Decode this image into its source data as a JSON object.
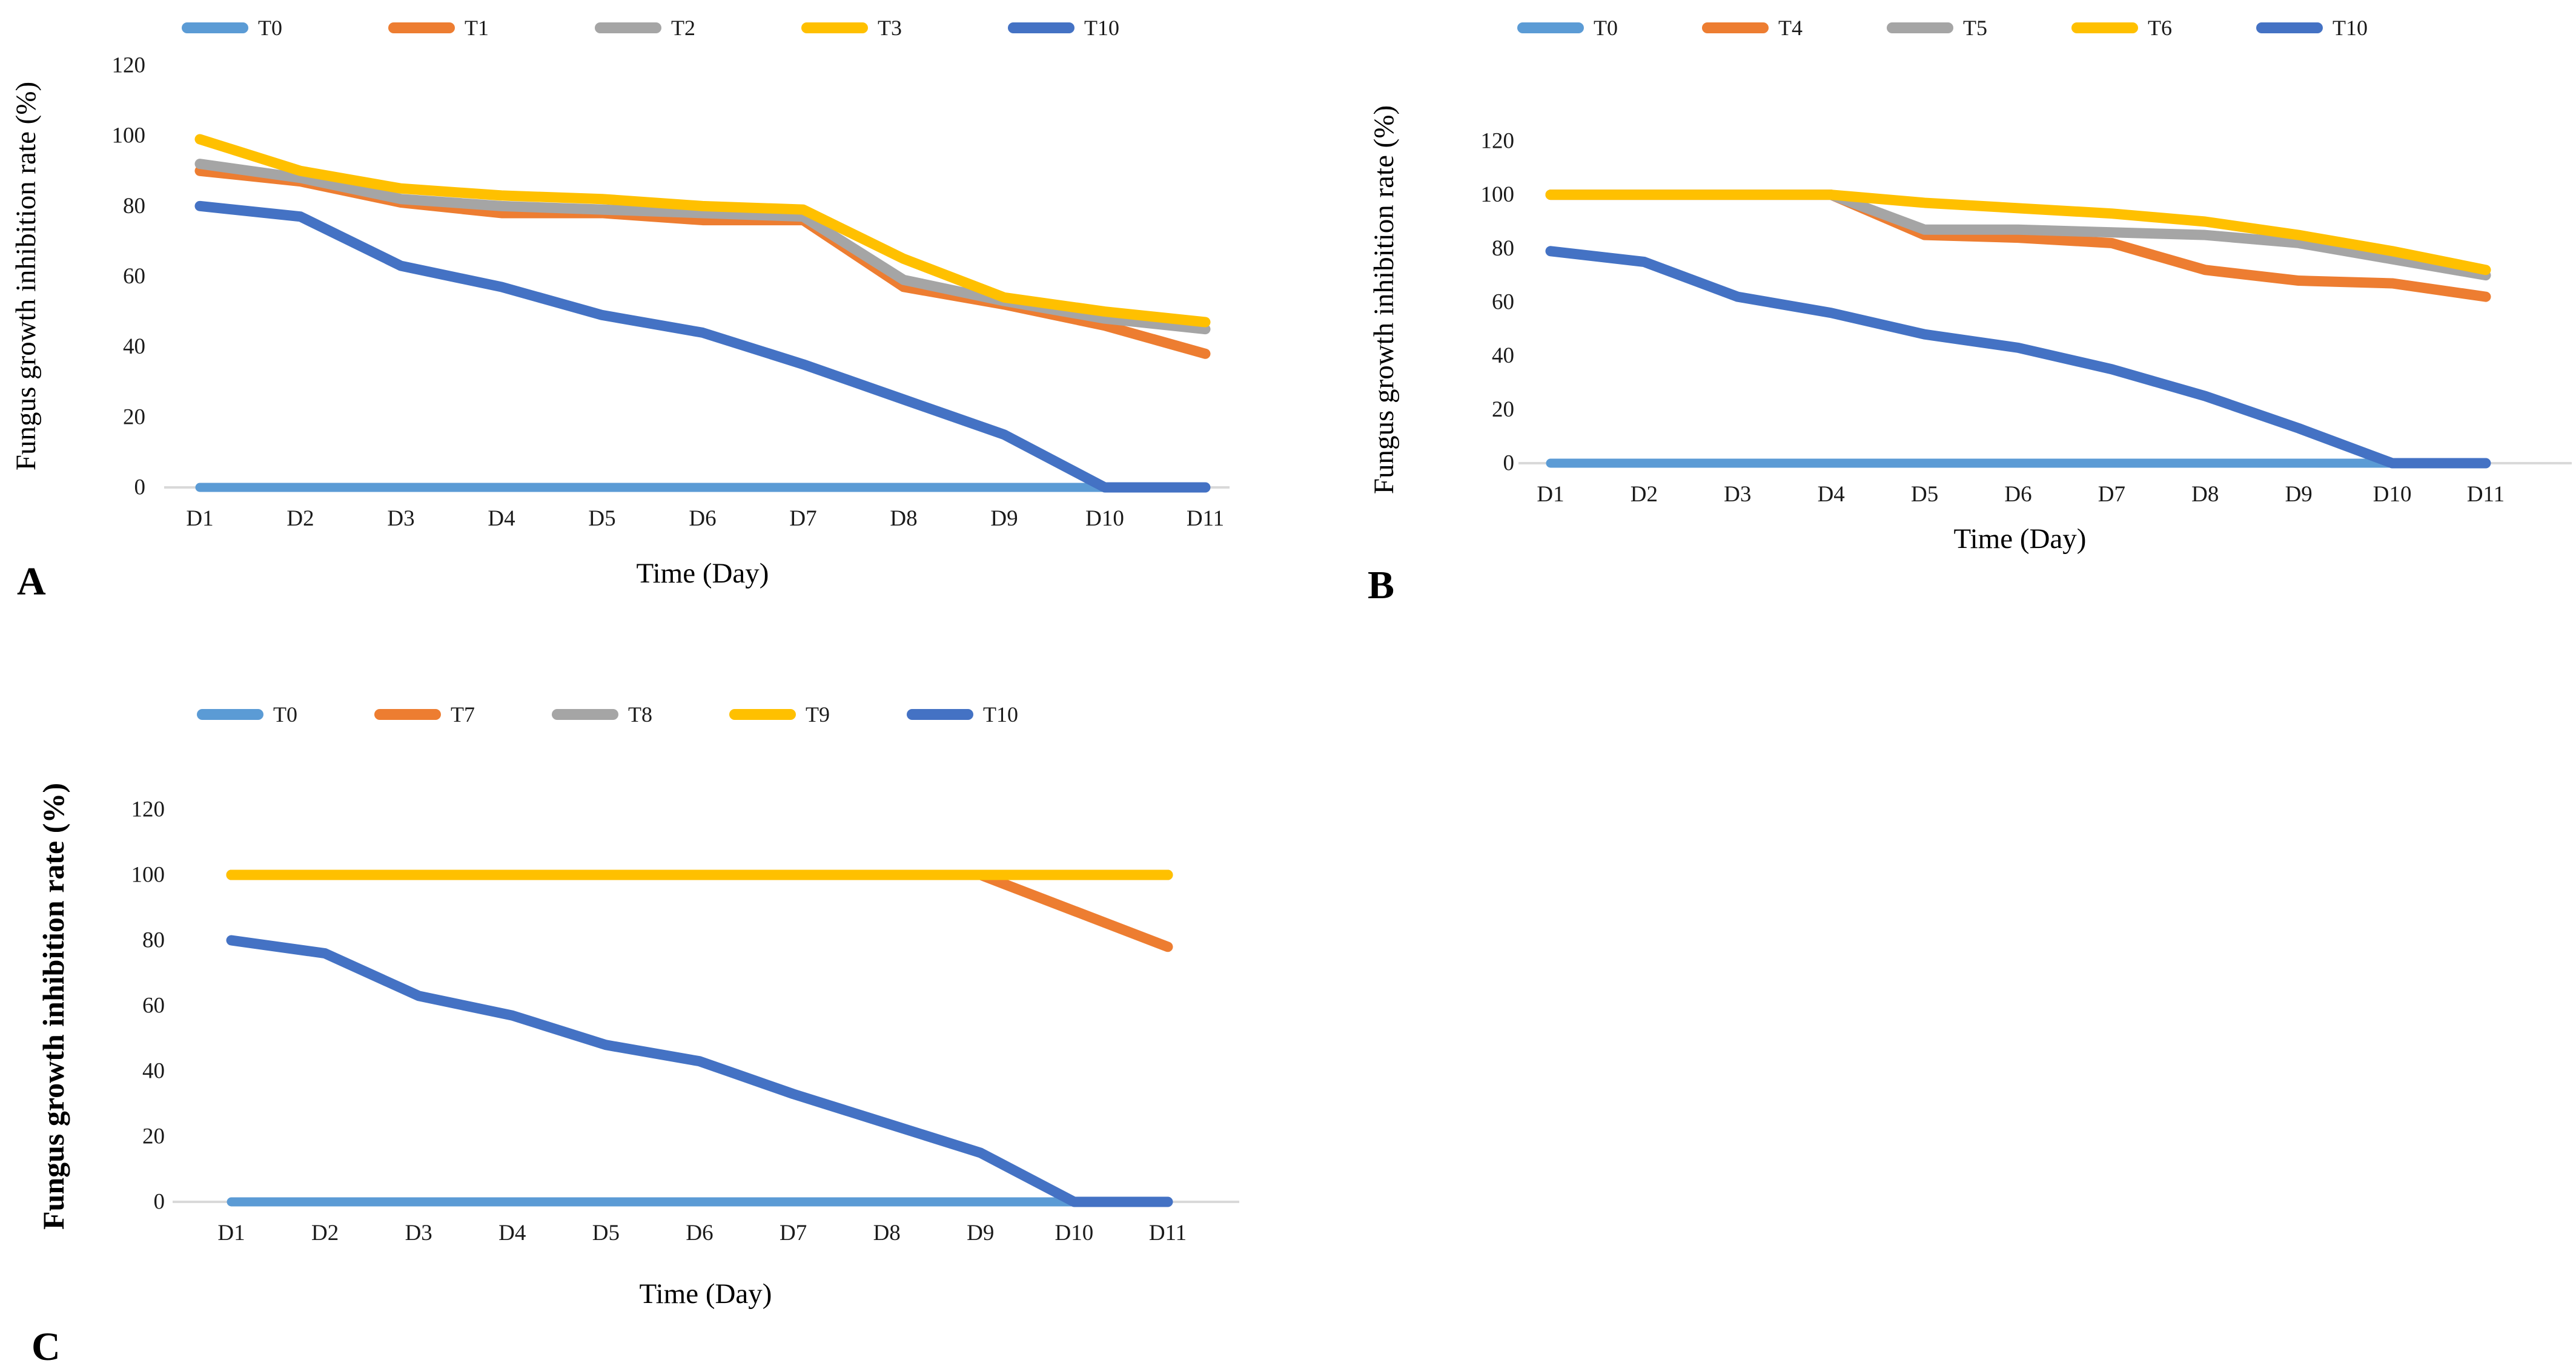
{
  "figure": {
    "background_color": "#ffffff",
    "text_color": "#1a1a1a",
    "baseline_color": "#d9d9d9",
    "legend_position": "top",
    "grid": false
  },
  "chart_data": [
    {
      "type": "line",
      "panel_label": "A",
      "categories": [
        "D1",
        "D2",
        "D3",
        "D4",
        "D5",
        "D6",
        "D7",
        "D8",
        "D9",
        "D10",
        "D11"
      ],
      "xlabel": "Time (Day)",
      "ylabel": "Fungus growth inhibition  rate (%)",
      "ylabel_bold": false,
      "ylim": [
        0,
        120
      ],
      "y_ticks": [
        0,
        20,
        40,
        60,
        80,
        100,
        120
      ],
      "legend_entries": [
        "T0",
        "T1",
        "T2",
        "T3",
        "T10"
      ],
      "series": [
        {
          "name": "T0",
          "color": "#5B9BD5",
          "values": [
            0,
            0,
            0,
            0,
            0,
            0,
            0,
            0,
            0,
            0,
            0
          ]
        },
        {
          "name": "T1",
          "color": "#ED7D31",
          "values": [
            90,
            87,
            81,
            78,
            78,
            76,
            76,
            57,
            52,
            46,
            38
          ]
        },
        {
          "name": "T2",
          "color": "#A5A5A5",
          "values": [
            92,
            88,
            82,
            80,
            79,
            78,
            77,
            59,
            53,
            48,
            45
          ]
        },
        {
          "name": "T3",
          "color": "#FFC000",
          "values": [
            99,
            90,
            85,
            83,
            82,
            80,
            79,
            65,
            54,
            50,
            47
          ]
        },
        {
          "name": "T10",
          "color": "#4472C4",
          "values": [
            80,
            77,
            63,
            57,
            49,
            44,
            35,
            25,
            15,
            0,
            0
          ]
        }
      ]
    },
    {
      "type": "line",
      "panel_label": "B",
      "categories": [
        "D1",
        "D2",
        "D3",
        "D4",
        "D5",
        "D6",
        "D7",
        "D8",
        "D9",
        "D10",
        "D11"
      ],
      "xlabel": "Time (Day)",
      "ylabel": "Fungus growth inhibition  rate (%)",
      "ylabel_bold": false,
      "ylim": [
        0,
        120
      ],
      "y_ticks": [
        0,
        20,
        40,
        60,
        80,
        100,
        120
      ],
      "legend_entries": [
        "T0",
        "T4",
        "T5",
        "T6",
        "T10"
      ],
      "series": [
        {
          "name": "T0",
          "color": "#5B9BD5",
          "values": [
            0,
            0,
            0,
            0,
            0,
            0,
            0,
            0,
            0,
            0,
            0
          ]
        },
        {
          "name": "T4",
          "color": "#ED7D31",
          "values": [
            100,
            100,
            100,
            100,
            85,
            84,
            82,
            72,
            68,
            67,
            62
          ]
        },
        {
          "name": "T5",
          "color": "#A5A5A5",
          "values": [
            100,
            100,
            100,
            100,
            87,
            87,
            86,
            85,
            82,
            76,
            70
          ]
        },
        {
          "name": "T6",
          "color": "#FFC000",
          "values": [
            100,
            100,
            100,
            100,
            97,
            95,
            93,
            90,
            85,
            79,
            72
          ]
        },
        {
          "name": "T10",
          "color": "#4472C4",
          "values": [
            79,
            75,
            62,
            56,
            48,
            43,
            35,
            25,
            13,
            0,
            0
          ]
        }
      ]
    },
    {
      "type": "line",
      "panel_label": "C",
      "categories": [
        "D1",
        "D2",
        "D3",
        "D4",
        "D5",
        "D6",
        "D7",
        "D8",
        "D9",
        "D10",
        "D11"
      ],
      "xlabel": "Time (Day)",
      "ylabel": "Fungus growth inhibition rate (%)",
      "ylabel_bold": true,
      "ylim": [
        0,
        120
      ],
      "y_ticks": [
        0,
        20,
        40,
        60,
        80,
        100,
        120
      ],
      "legend_entries": [
        "T0",
        "T7",
        "T8",
        "T9",
        "T10"
      ],
      "series": [
        {
          "name": "T0",
          "color": "#5B9BD5",
          "values": [
            0,
            0,
            0,
            0,
            0,
            0,
            0,
            0,
            0,
            0,
            0
          ]
        },
        {
          "name": "T7",
          "color": "#ED7D31",
          "values": [
            100,
            100,
            100,
            100,
            100,
            100,
            100,
            100,
            100,
            89,
            78
          ]
        },
        {
          "name": "T8",
          "color": "#A5A5A5",
          "values": [
            100,
            100,
            100,
            100,
            100,
            100,
            100,
            100,
            100,
            100,
            100
          ]
        },
        {
          "name": "T9",
          "color": "#FFC000",
          "values": [
            100,
            100,
            100,
            100,
            100,
            100,
            100,
            100,
            100,
            100,
            100
          ]
        },
        {
          "name": "T10",
          "color": "#4472C4",
          "values": [
            80,
            76,
            63,
            57,
            48,
            43,
            33,
            24,
            15,
            0,
            0
          ]
        }
      ]
    }
  ]
}
